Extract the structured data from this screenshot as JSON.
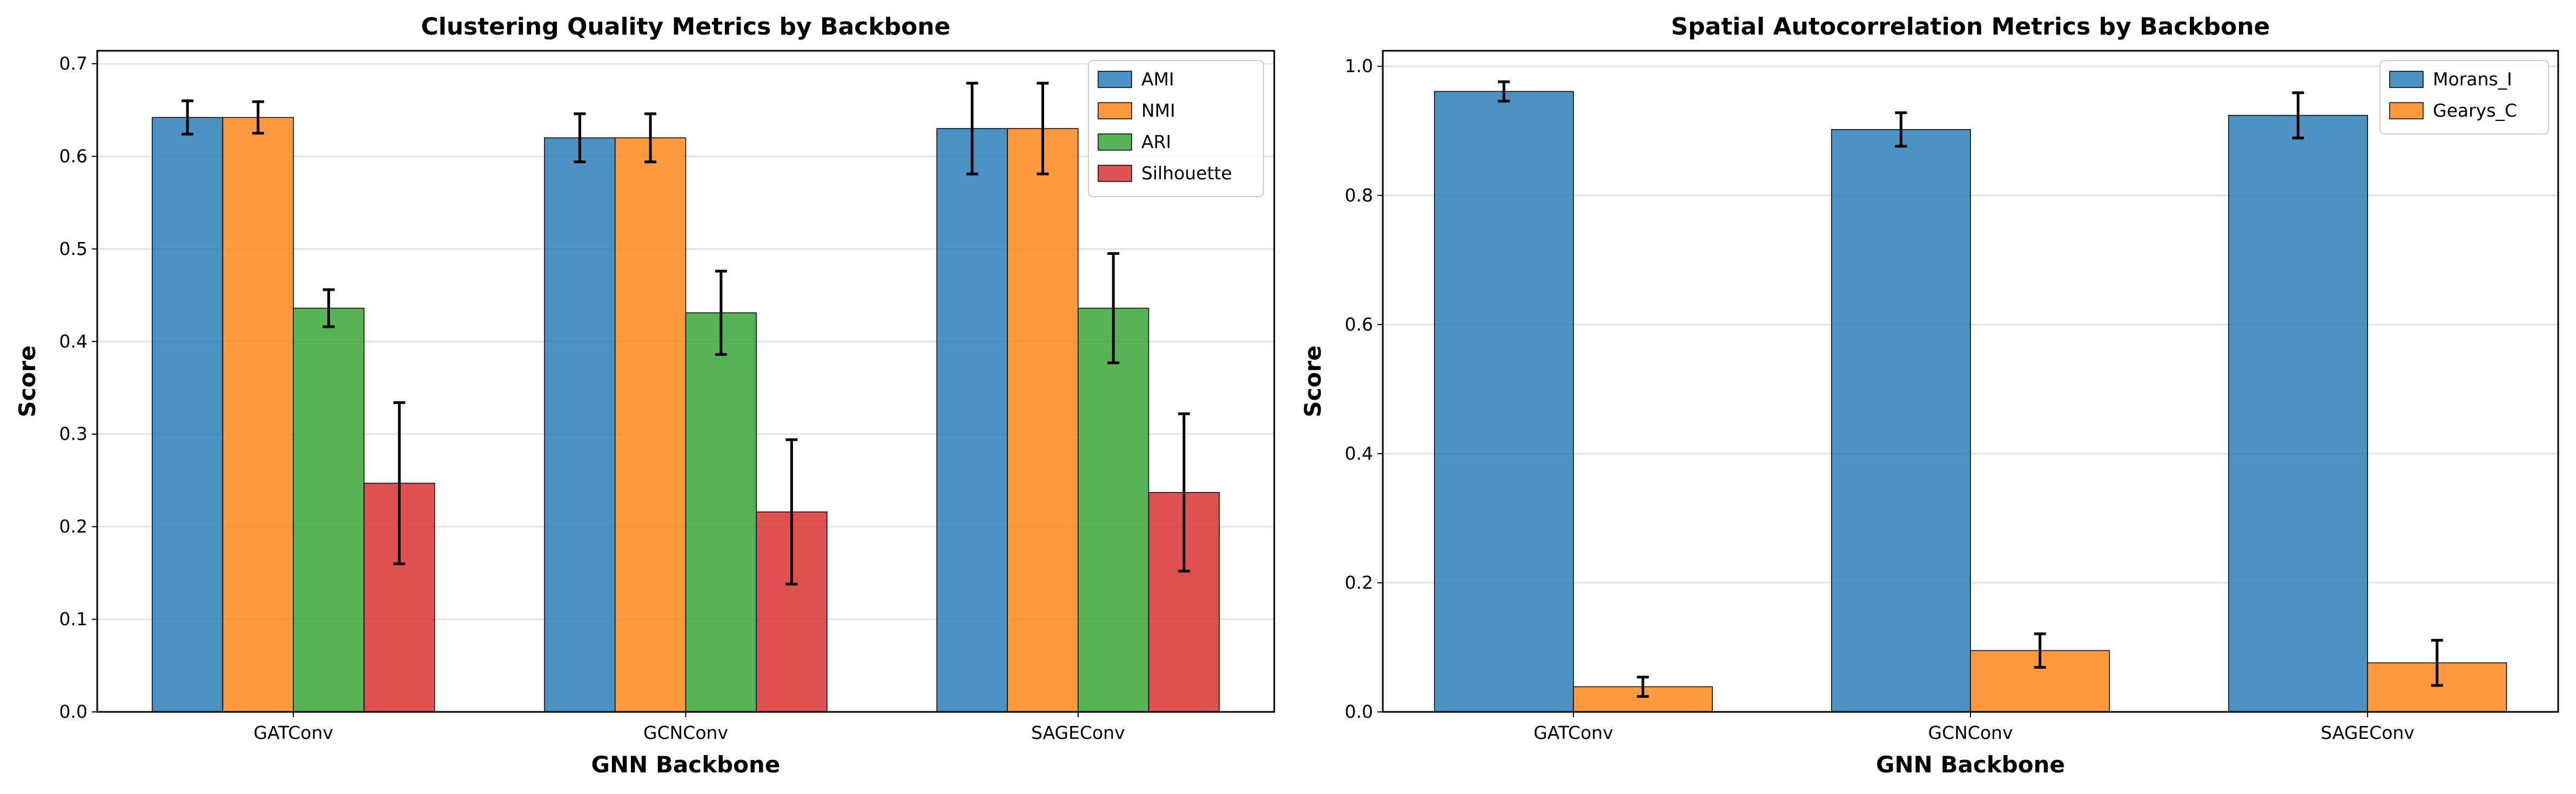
{
  "chart_data": [
    {
      "type": "bar",
      "title": "Clustering Quality Metrics by Backbone",
      "xlabel": "GNN Backbone",
      "ylabel": "Score",
      "categories": [
        "GATConv",
        "GCNConv",
        "SAGEConv"
      ],
      "ylim": [
        0,
        0.714
      ],
      "yticks": [
        0.0,
        0.1,
        0.2,
        0.3,
        0.4,
        0.5,
        0.6,
        0.7
      ],
      "grid": "horizontal",
      "legend_position": "top-right",
      "series": [
        {
          "name": "AMI",
          "color": "#1f77b4",
          "values": [
            0.642,
            0.62,
            0.63
          ],
          "errors": [
            0.018,
            0.026,
            0.049
          ]
        },
        {
          "name": "NMI",
          "color": "#ff7f0e",
          "values": [
            0.642,
            0.62,
            0.63
          ],
          "errors": [
            0.017,
            0.026,
            0.049
          ]
        },
        {
          "name": "ARI",
          "color": "#2ca02c",
          "values": [
            0.436,
            0.431,
            0.436
          ],
          "errors": [
            0.02,
            0.045,
            0.059
          ]
        },
        {
          "name": "Silhouette",
          "color": "#d62728",
          "values": [
            0.247,
            0.216,
            0.237
          ],
          "errors": [
            0.087,
            0.078,
            0.085
          ]
        }
      ]
    },
    {
      "type": "bar",
      "title": "Spatial Autocorrelation Metrics by Backbone",
      "xlabel": "GNN Backbone",
      "ylabel": "Score",
      "categories": [
        "GATConv",
        "GCNConv",
        "SAGEConv"
      ],
      "ylim": [
        0,
        1.024
      ],
      "yticks": [
        0.0,
        0.2,
        0.4,
        0.6,
        0.8,
        1.0
      ],
      "grid": "horizontal",
      "legend_position": "top-right",
      "series": [
        {
          "name": "Morans_I",
          "color": "#1f77b4",
          "values": [
            0.961,
            0.902,
            0.924
          ],
          "errors": [
            0.015,
            0.026,
            0.035
          ]
        },
        {
          "name": "Gearys_C",
          "color": "#ff7f0e",
          "values": [
            0.039,
            0.095,
            0.076
          ],
          "errors": [
            0.015,
            0.026,
            0.035
          ]
        }
      ]
    }
  ]
}
